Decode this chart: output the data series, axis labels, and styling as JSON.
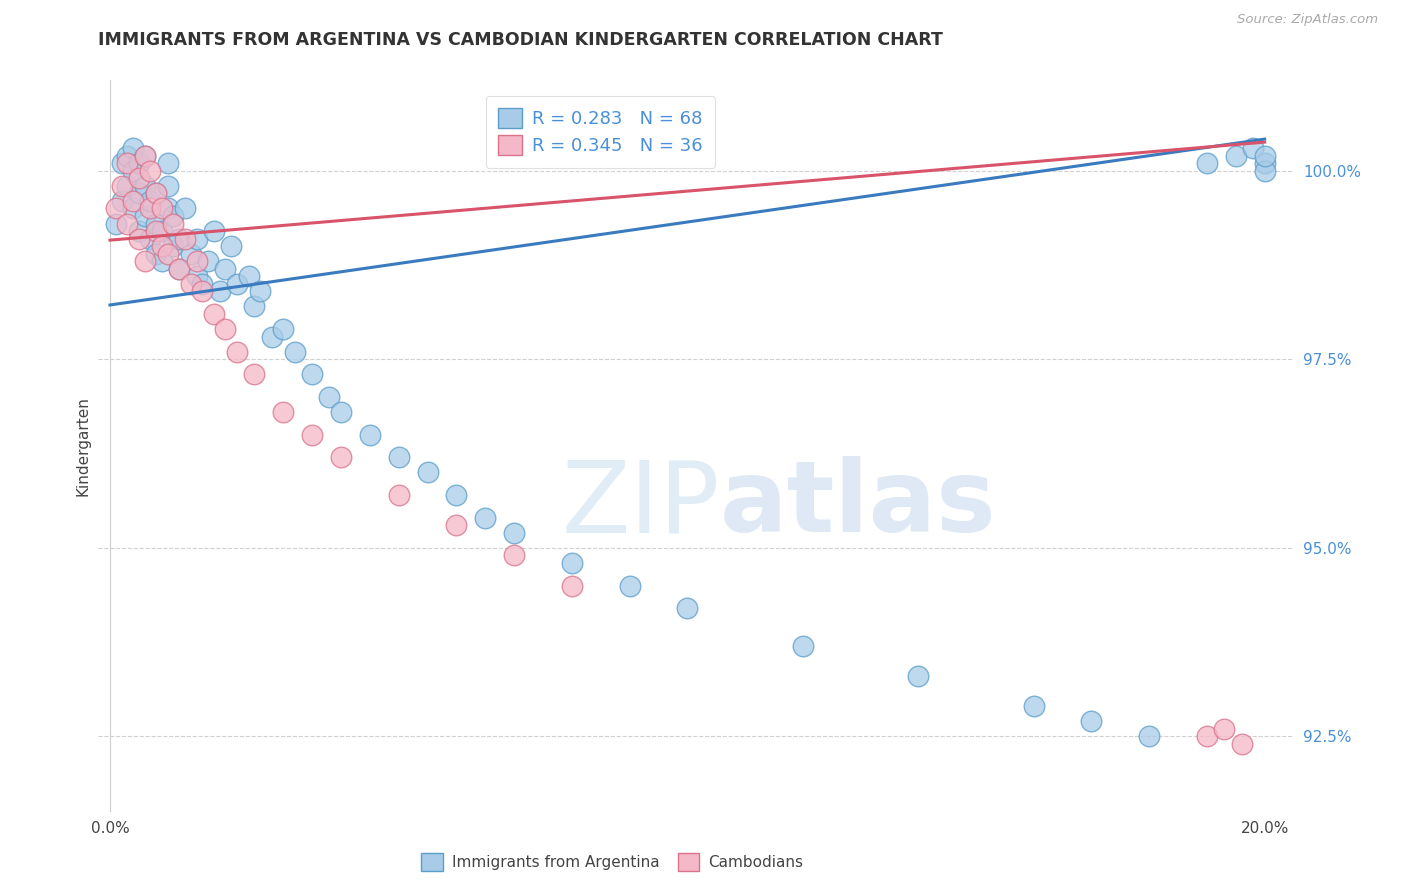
{
  "title": "IMMIGRANTS FROM ARGENTINA VS CAMBODIAN KINDERGARTEN CORRELATION CHART",
  "source": "Source: ZipAtlas.com",
  "ylabel": "Kindergarten",
  "legend1_label": "R = 0.283   N = 68",
  "legend2_label": "R = 0.345   N = 36",
  "color_blue_face": "#a8cce8",
  "color_blue_edge": "#5b9ec9",
  "color_pink_face": "#f4b8c8",
  "color_pink_edge": "#d9728a",
  "color_blue_line": "#3a7bbf",
  "color_pink_line": "#d9536b",
  "color_ytick": "#4a90d9",
  "color_grid": "#cccccc",
  "ymin": 91.5,
  "ymax": 101.2,
  "xmin": -0.002,
  "xmax": 0.205,
  "ytick_vals": [
    92.5,
    95.0,
    97.5,
    100.0
  ],
  "ytick_labels": [
    "92.5%",
    "95.0%",
    "97.5%",
    "100.0%"
  ],
  "xtick_vals": [
    0.0,
    0.05,
    0.1,
    0.15,
    0.2
  ],
  "xtick_labels": [
    "0.0%",
    "",
    "",
    "",
    "20.0%"
  ],
  "blue_line_x": [
    0.0,
    0.2
  ],
  "blue_line_y": [
    98.22,
    100.42
  ],
  "pink_line_x": [
    0.0,
    0.2
  ],
  "pink_line_y": [
    99.08,
    100.38
  ],
  "arg_x": [
    0.001,
    0.002,
    0.002,
    0.003,
    0.003,
    0.004,
    0.004,
    0.004,
    0.005,
    0.005,
    0.005,
    0.006,
    0.006,
    0.006,
    0.007,
    0.007,
    0.008,
    0.008,
    0.008,
    0.009,
    0.009,
    0.01,
    0.01,
    0.01,
    0.011,
    0.011,
    0.012,
    0.012,
    0.013,
    0.014,
    0.015,
    0.015,
    0.016,
    0.017,
    0.018,
    0.019,
    0.02,
    0.021,
    0.022,
    0.024,
    0.025,
    0.026,
    0.028,
    0.03,
    0.032,
    0.035,
    0.038,
    0.04,
    0.045,
    0.05,
    0.055,
    0.06,
    0.065,
    0.07,
    0.08,
    0.09,
    0.1,
    0.12,
    0.14,
    0.16,
    0.17,
    0.18,
    0.19,
    0.195,
    0.198,
    0.2,
    0.2,
    0.2
  ],
  "arg_y": [
    99.3,
    99.6,
    100.1,
    99.8,
    100.2,
    99.5,
    100.0,
    100.3,
    99.2,
    99.7,
    100.1,
    99.4,
    99.8,
    100.2,
    99.1,
    99.6,
    98.9,
    99.3,
    99.7,
    98.8,
    99.2,
    99.5,
    99.8,
    100.1,
    99.0,
    99.4,
    98.7,
    99.1,
    99.5,
    98.9,
    98.6,
    99.1,
    98.5,
    98.8,
    99.2,
    98.4,
    98.7,
    99.0,
    98.5,
    98.6,
    98.2,
    98.4,
    97.8,
    97.9,
    97.6,
    97.3,
    97.0,
    96.8,
    96.5,
    96.2,
    96.0,
    95.7,
    95.4,
    95.2,
    94.8,
    94.5,
    94.2,
    93.7,
    93.3,
    92.9,
    92.7,
    92.5,
    100.1,
    100.2,
    100.3,
    100.1,
    100.0,
    100.2
  ],
  "cam_x": [
    0.001,
    0.002,
    0.003,
    0.003,
    0.004,
    0.005,
    0.005,
    0.006,
    0.006,
    0.007,
    0.007,
    0.008,
    0.008,
    0.009,
    0.009,
    0.01,
    0.011,
    0.012,
    0.013,
    0.014,
    0.015,
    0.016,
    0.018,
    0.02,
    0.022,
    0.025,
    0.03,
    0.035,
    0.04,
    0.05,
    0.06,
    0.07,
    0.08,
    0.19,
    0.193,
    0.196
  ],
  "cam_y": [
    99.5,
    99.8,
    99.3,
    100.1,
    99.6,
    99.1,
    99.9,
    98.8,
    100.2,
    99.5,
    100.0,
    99.2,
    99.7,
    99.0,
    99.5,
    98.9,
    99.3,
    98.7,
    99.1,
    98.5,
    98.8,
    98.4,
    98.1,
    97.9,
    97.6,
    97.3,
    96.8,
    96.5,
    96.2,
    95.7,
    95.3,
    94.9,
    94.5,
    92.5,
    92.6,
    92.4
  ]
}
